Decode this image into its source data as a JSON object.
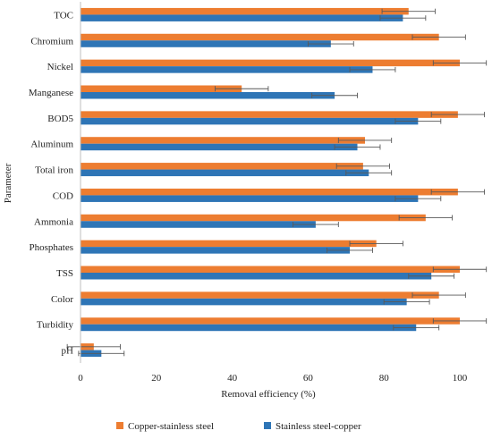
{
  "chart_data": {
    "type": "bar",
    "orientation": "horizontal",
    "xlabel": "Removal efficiency (%)",
    "ylabel": "Parameter",
    "xlim": [
      0,
      100
    ],
    "x_ticks": [
      0,
      20,
      40,
      60,
      80,
      100
    ],
    "categories": [
      "TOC",
      "Chromium",
      "Nickel",
      "Manganese",
      "BOD5",
      "Aluminum",
      "Total iron",
      "COD",
      "Ammonia",
      "Phosphates",
      "TSS",
      "Color",
      "Turbidity",
      "pH"
    ],
    "series": [
      {
        "name": "Copper-stainless steel",
        "color": "#ED7D31",
        "values": [
          86.5,
          94.5,
          100,
          42.5,
          99.5,
          75,
          74.5,
          99.5,
          91,
          78,
          100,
          94.5,
          100,
          3.5
        ],
        "errors": [
          7,
          7,
          7,
          7,
          7,
          7,
          7,
          7,
          7,
          7,
          7,
          7,
          7,
          7
        ]
      },
      {
        "name": "Stainless steel-copper",
        "color": "#2E75B6",
        "values": [
          85,
          66,
          77,
          67,
          89,
          73,
          76,
          89,
          62,
          71,
          92.5,
          86,
          88.5,
          5.5
        ],
        "errors": [
          6,
          6,
          6,
          6,
          6,
          6,
          6,
          6,
          6,
          6,
          6,
          6,
          6,
          6
        ]
      }
    ],
    "legend_position": "bottom",
    "grid": false
  }
}
